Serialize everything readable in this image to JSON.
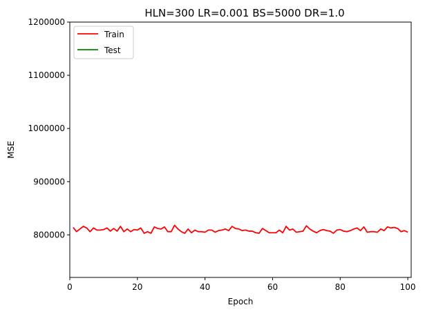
{
  "chart_data": {
    "type": "line",
    "title": "HLN=300 LR=0.001 BS=5000 DR=1.0",
    "xlabel": "Epoch",
    "ylabel": "MSE",
    "xlim": [
      0,
      101
    ],
    "ylim": [
      720000,
      1200000
    ],
    "x_ticks": [
      0,
      20,
      40,
      60,
      80,
      100
    ],
    "y_ticks": [
      800000,
      900000,
      1000000,
      1100000,
      1200000
    ],
    "grid": false,
    "legend_position": "upper left",
    "series": [
      {
        "name": "Train",
        "color": "#ff0000",
        "x": [
          1,
          2,
          3,
          4,
          5,
          6,
          7,
          8,
          9,
          10,
          11,
          12,
          13,
          14,
          15,
          16,
          17,
          18,
          19,
          20,
          21,
          22,
          23,
          24,
          25,
          26,
          27,
          28,
          29,
          30,
          31,
          32,
          33,
          34,
          35,
          36,
          37,
          38,
          39,
          40,
          41,
          42,
          43,
          44,
          45,
          46,
          47,
          48,
          49,
          50,
          51,
          52,
          53,
          54,
          55,
          56,
          57,
          58,
          59,
          60,
          61,
          62,
          63,
          64,
          65,
          66,
          67,
          68,
          69,
          70,
          71,
          72,
          73,
          74,
          75,
          76,
          77,
          78,
          79,
          80,
          81,
          82,
          83,
          84,
          85,
          86,
          87,
          88,
          89,
          90,
          91,
          92,
          93,
          94,
          95,
          96,
          97,
          98,
          99,
          100
        ],
        "values": [
          814000,
          806000,
          811000,
          816000,
          813000,
          806000,
          813000,
          809000,
          809000,
          810000,
          813000,
          807000,
          812000,
          807000,
          816000,
          806000,
          811000,
          806000,
          810000,
          809000,
          813000,
          803000,
          806000,
          803000,
          815000,
          812000,
          811000,
          815000,
          806000,
          806000,
          818000,
          811000,
          806000,
          803000,
          811000,
          804000,
          809000,
          806000,
          806000,
          805000,
          809000,
          809000,
          805000,
          808000,
          809000,
          811000,
          808000,
          816000,
          812000,
          811000,
          808000,
          809000,
          807000,
          807000,
          804000,
          803000,
          812000,
          808000,
          804000,
          804000,
          804000,
          809000,
          804000,
          816000,
          809000,
          811000,
          805000,
          806000,
          807000,
          817000,
          811000,
          807000,
          804000,
          808000,
          810000,
          808000,
          807000,
          803000,
          809000,
          810000,
          807000,
          806000,
          808000,
          811000,
          813000,
          808000,
          815000,
          805000,
          806000,
          806000,
          805000,
          811000,
          808000,
          815000,
          813000,
          814000,
          812000,
          806000,
          808000,
          805000
        ]
      },
      {
        "name": "Test",
        "color": "#008000",
        "x": [],
        "values": []
      }
    ]
  }
}
